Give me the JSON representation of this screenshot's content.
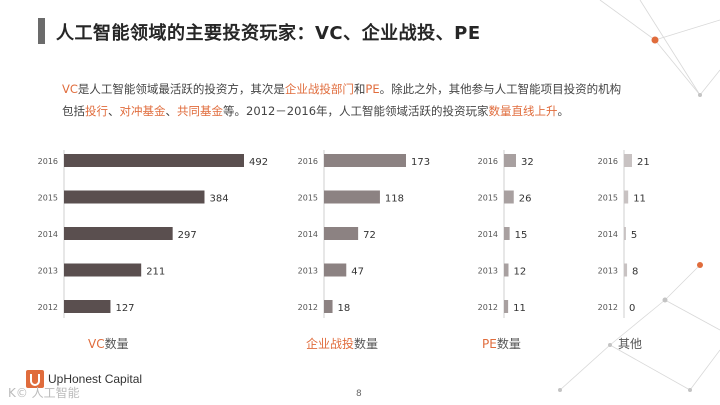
{
  "header": {
    "title": "人工智能领域的主要投资玩家：VC、企业战投、PE"
  },
  "intro": {
    "p1": "VC",
    "p2": "是人工智能领域最活跃的投资方，其次是",
    "p3": "企业战投部门",
    "p4": "和",
    "p5": "PE",
    "p6": "。除此之外，其他参与人工智能项目投资的机构",
    "p7": "包括",
    "p8": "投行",
    "p9": "、",
    "p10": "对冲基金",
    "p11": "、",
    "p12": "共同基金",
    "p13": "等。2012－2016年，人工智能领域活跃的投资玩家",
    "p14": "数量直线上升",
    "p15": "。"
  },
  "labels": {
    "vc_accent": "VC",
    "vc_rest": "数量",
    "corp_accent": "企业战投",
    "corp_rest": "数量",
    "pe_accent": "PE",
    "pe_rest": "数量",
    "other": "其他"
  },
  "colors": {
    "accent": "#e06c3c",
    "vc_bar": "#5a4f4f",
    "corp_bar": "#8c8282",
    "pe_bar": "#a8a0a0",
    "other_bar": "#c8c2c2"
  },
  "footer": {
    "brand": "UpHonest Capital",
    "page": "8",
    "watermark": "K© 人工智能"
  },
  "chart_data": [
    {
      "type": "bar",
      "name": "VC数量",
      "categories": [
        "2016",
        "2015",
        "2014",
        "2013",
        "2012"
      ],
      "values": [
        492,
        384,
        297,
        211,
        127
      ]
    },
    {
      "type": "bar",
      "name": "企业战投数量",
      "categories": [
        "2016",
        "2015",
        "2014",
        "2013",
        "2012"
      ],
      "values": [
        173,
        118,
        72,
        47,
        18
      ]
    },
    {
      "type": "bar",
      "name": "PE数量",
      "categories": [
        "2016",
        "2015",
        "2014",
        "2013",
        "2012"
      ],
      "values": [
        32,
        26,
        15,
        12,
        11
      ]
    },
    {
      "type": "bar",
      "name": "其他",
      "categories": [
        "2016",
        "2015",
        "2014",
        "2013",
        "2012"
      ],
      "values": [
        21,
        11,
        5,
        8,
        0
      ]
    }
  ]
}
